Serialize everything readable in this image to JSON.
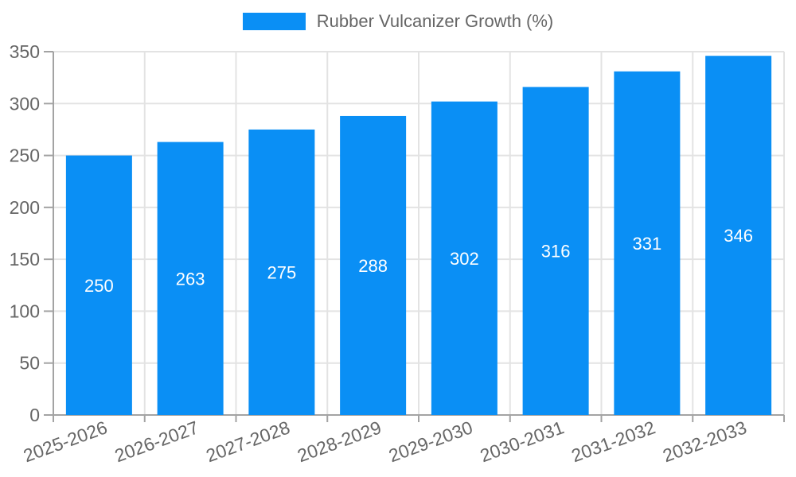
{
  "chart_data": {
    "type": "bar",
    "title": "Rubber Vulcanizer Growth (%)",
    "categories": [
      "2025-2026",
      "2026-2027",
      "2027-2028",
      "2028-2029",
      "2029-2030",
      "2030-2031",
      "2031-2032",
      "2032-2033"
    ],
    "values": [
      250,
      263,
      275,
      288,
      302,
      316,
      331,
      346
    ],
    "xlabel": "",
    "ylabel": "",
    "ylim": [
      0,
      350
    ],
    "yticks": [
      0,
      50,
      100,
      150,
      200,
      250,
      300,
      350
    ],
    "grid": true,
    "legend": {
      "position": "top",
      "label": "Rubber Vulcanizer Growth (%)"
    },
    "colors": {
      "bar": "#0A8FF5",
      "grid": "#E3E3E3",
      "axis": "#A3A3A3",
      "tick_label": "#666666",
      "value_label": "#FFFFFF"
    }
  }
}
